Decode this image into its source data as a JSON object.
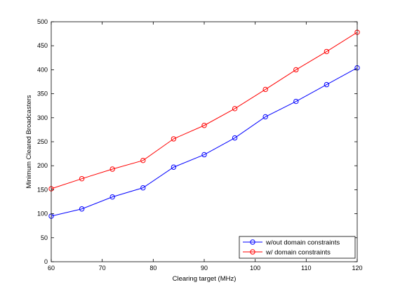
{
  "chart_data": {
    "type": "line",
    "title": "",
    "xlabel": "Clearing target (MHz)",
    "ylabel": "Minimum Cleared Broadcasters",
    "xlim": [
      60,
      120
    ],
    "ylim": [
      0,
      500
    ],
    "xticks": [
      60,
      70,
      80,
      90,
      100,
      110,
      120
    ],
    "yticks": [
      0,
      50,
      100,
      150,
      200,
      250,
      300,
      350,
      400,
      450,
      500
    ],
    "x": [
      60,
      66,
      72,
      78,
      84,
      90,
      96,
      102,
      108,
      114,
      120
    ],
    "grid": false,
    "legend_position": "bottom-right",
    "series": [
      {
        "name": "w/out domain constraints",
        "color": "#0000ff",
        "marker": "circle",
        "values": [
          95,
          110,
          135,
          154,
          197,
          223,
          258,
          302,
          334,
          369,
          404
        ]
      },
      {
        "name": "w/ domain constraints",
        "color": "#ff0000",
        "marker": "circle",
        "values": [
          152,
          173,
          193,
          211,
          256,
          284,
          319,
          359,
          400,
          438,
          478
        ]
      }
    ]
  }
}
